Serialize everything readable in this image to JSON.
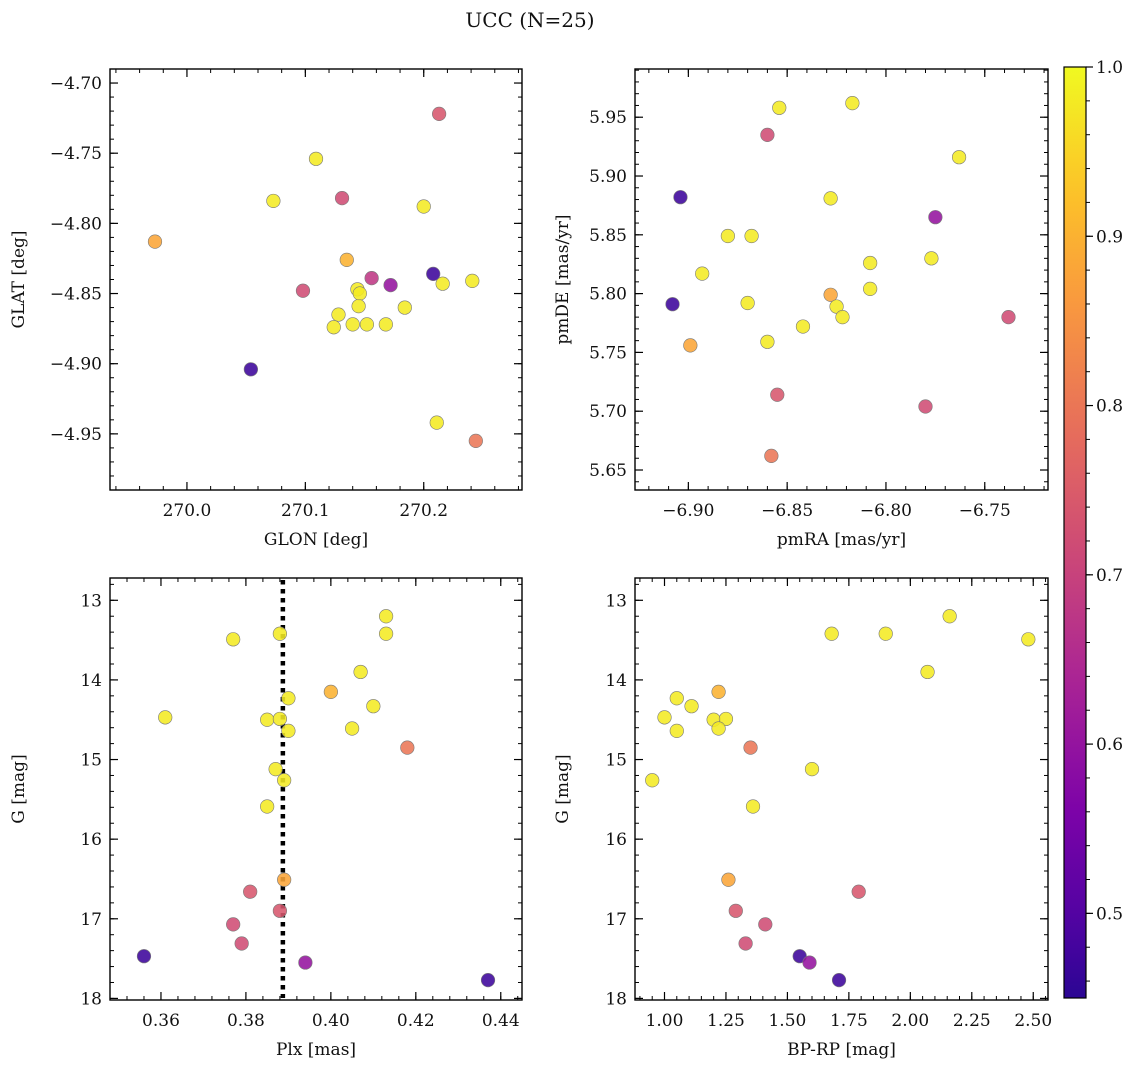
{
  "figure": {
    "title": "UCC (N=25)"
  },
  "colorbar": {
    "colormap": "plasma",
    "range": [
      0.45,
      1.0
    ],
    "ticks": [
      "0.5",
      "0.6",
      "0.7",
      "0.8",
      "0.9",
      "1.0"
    ]
  },
  "chart_data": [
    {
      "type": "scatter",
      "xlabel": "GLON [deg]",
      "ylabel": "GLAT [deg]",
      "xlim": [
        269.935,
        270.283
      ],
      "ylim": [
        -4.99,
        -4.69
      ],
      "xticks": [
        "270.0",
        "270.1",
        "270.2"
      ],
      "yticks": [
        "−4.70",
        "−4.75",
        "−4.80",
        "−4.85",
        "−4.90",
        "−4.95"
      ],
      "y_inverted": false,
      "points": [
        {
          "x": 270.213,
          "y": -4.722,
          "c": 0.74
        },
        {
          "x": 270.109,
          "y": -4.754,
          "c": 0.98
        },
        {
          "x": 270.073,
          "y": -4.784,
          "c": 0.98
        },
        {
          "x": 270.131,
          "y": -4.782,
          "c": 0.72
        },
        {
          "x": 270.2,
          "y": -4.788,
          "c": 0.98
        },
        {
          "x": 269.973,
          "y": -4.813,
          "c": 0.88
        },
        {
          "x": 270.135,
          "y": -4.826,
          "c": 0.9
        },
        {
          "x": 270.156,
          "y": -4.839,
          "c": 0.68
        },
        {
          "x": 270.172,
          "y": -4.844,
          "c": 0.6
        },
        {
          "x": 270.208,
          "y": -4.836,
          "c": 0.47
        },
        {
          "x": 270.216,
          "y": -4.843,
          "c": 0.98
        },
        {
          "x": 270.241,
          "y": -4.841,
          "c": 0.98
        },
        {
          "x": 270.098,
          "y": -4.848,
          "c": 0.72
        },
        {
          "x": 270.144,
          "y": -4.847,
          "c": 0.98
        },
        {
          "x": 270.146,
          "y": -4.85,
          "c": 0.98
        },
        {
          "x": 270.145,
          "y": -4.859,
          "c": 0.98
        },
        {
          "x": 270.184,
          "y": -4.86,
          "c": 0.98
        },
        {
          "x": 270.128,
          "y": -4.865,
          "c": 0.98
        },
        {
          "x": 270.14,
          "y": -4.872,
          "c": 0.98
        },
        {
          "x": 270.152,
          "y": -4.872,
          "c": 0.98
        },
        {
          "x": 270.168,
          "y": -4.872,
          "c": 0.98
        },
        {
          "x": 270.124,
          "y": -4.874,
          "c": 0.98
        },
        {
          "x": 270.054,
          "y": -4.904,
          "c": 0.47
        },
        {
          "x": 270.211,
          "y": -4.942,
          "c": 0.98
        },
        {
          "x": 270.244,
          "y": -4.955,
          "c": 0.8
        }
      ]
    },
    {
      "type": "scatter",
      "xlabel": "pmRA [mas/yr]",
      "ylabel": "pmDE [mas/yr]",
      "xlim": [
        -6.927,
        -6.718
      ],
      "ylim": [
        5.633,
        5.991
      ],
      "xticks": [
        "−6.90",
        "−6.85",
        "−6.80",
        "−6.75"
      ],
      "yticks": [
        "5.65",
        "5.70",
        "5.75",
        "5.80",
        "5.85",
        "5.90",
        "5.95"
      ],
      "y_inverted": false,
      "points": [
        {
          "x": -6.817,
          "y": 5.962,
          "c": 0.98
        },
        {
          "x": -6.854,
          "y": 5.958,
          "c": 0.98
        },
        {
          "x": -6.86,
          "y": 5.935,
          "c": 0.72
        },
        {
          "x": -6.763,
          "y": 5.916,
          "c": 0.98
        },
        {
          "x": -6.904,
          "y": 5.882,
          "c": 0.47
        },
        {
          "x": -6.828,
          "y": 5.881,
          "c": 0.98
        },
        {
          "x": -6.775,
          "y": 5.865,
          "c": 0.6
        },
        {
          "x": -6.88,
          "y": 5.849,
          "c": 0.98
        },
        {
          "x": -6.868,
          "y": 5.849,
          "c": 0.98
        },
        {
          "x": -6.777,
          "y": 5.83,
          "c": 0.98
        },
        {
          "x": -6.808,
          "y": 5.826,
          "c": 0.98
        },
        {
          "x": -6.893,
          "y": 5.817,
          "c": 0.98
        },
        {
          "x": -6.808,
          "y": 5.804,
          "c": 0.98
        },
        {
          "x": -6.828,
          "y": 5.799,
          "c": 0.88
        },
        {
          "x": -6.87,
          "y": 5.792,
          "c": 0.98
        },
        {
          "x": -6.908,
          "y": 5.791,
          "c": 0.47
        },
        {
          "x": -6.825,
          "y": 5.789,
          "c": 0.98
        },
        {
          "x": -6.822,
          "y": 5.78,
          "c": 0.98
        },
        {
          "x": -6.738,
          "y": 5.78,
          "c": 0.72
        },
        {
          "x": -6.842,
          "y": 5.772,
          "c": 0.98
        },
        {
          "x": -6.86,
          "y": 5.759,
          "c": 0.98
        },
        {
          "x": -6.899,
          "y": 5.756,
          "c": 0.88
        },
        {
          "x": -6.855,
          "y": 5.714,
          "c": 0.74
        },
        {
          "x": -6.78,
          "y": 5.704,
          "c": 0.72
        },
        {
          "x": -6.858,
          "y": 5.662,
          "c": 0.8
        }
      ]
    },
    {
      "type": "scatter",
      "xlabel": "Plx [mas]",
      "ylabel": "G [mag]",
      "xlim": [
        0.348,
        0.445
      ],
      "ylim": [
        18.02,
        12.72
      ],
      "xticks": [
        "0.36",
        "0.38",
        "0.40",
        "0.42",
        "0.44"
      ],
      "yticks": [
        "13",
        "14",
        "15",
        "16",
        "17",
        "18"
      ],
      "y_inverted": true,
      "vline": {
        "x": 0.3887,
        "style": "dotted"
      },
      "points": [
        {
          "x": 0.413,
          "y": 13.2,
          "c": 0.98
        },
        {
          "x": 0.377,
          "y": 13.49,
          "c": 0.98
        },
        {
          "x": 0.388,
          "y": 13.42,
          "c": 0.98
        },
        {
          "x": 0.413,
          "y": 13.42,
          "c": 0.98
        },
        {
          "x": 0.407,
          "y": 13.9,
          "c": 0.98
        },
        {
          "x": 0.4,
          "y": 14.15,
          "c": 0.9
        },
        {
          "x": 0.39,
          "y": 14.23,
          "c": 0.98
        },
        {
          "x": 0.41,
          "y": 14.33,
          "c": 0.98
        },
        {
          "x": 0.361,
          "y": 14.47,
          "c": 0.98
        },
        {
          "x": 0.385,
          "y": 14.5,
          "c": 0.98
        },
        {
          "x": 0.388,
          "y": 14.49,
          "c": 0.98
        },
        {
          "x": 0.405,
          "y": 14.61,
          "c": 0.98
        },
        {
          "x": 0.39,
          "y": 14.64,
          "c": 0.98
        },
        {
          "x": 0.418,
          "y": 14.85,
          "c": 0.8
        },
        {
          "x": 0.387,
          "y": 15.12,
          "c": 0.98
        },
        {
          "x": 0.389,
          "y": 15.26,
          "c": 0.98
        },
        {
          "x": 0.385,
          "y": 15.59,
          "c": 0.98
        },
        {
          "x": 0.389,
          "y": 16.51,
          "c": 0.88
        },
        {
          "x": 0.381,
          "y": 16.66,
          "c": 0.74
        },
        {
          "x": 0.388,
          "y": 16.9,
          "c": 0.74
        },
        {
          "x": 0.377,
          "y": 17.07,
          "c": 0.72
        },
        {
          "x": 0.379,
          "y": 17.31,
          "c": 0.72
        },
        {
          "x": 0.356,
          "y": 17.47,
          "c": 0.47
        },
        {
          "x": 0.394,
          "y": 17.55,
          "c": 0.6
        },
        {
          "x": 0.437,
          "y": 17.77,
          "c": 0.47
        }
      ]
    },
    {
      "type": "scatter",
      "xlabel": "BP-RP [mag]",
      "ylabel": "G [mag]",
      "xlim": [
        0.88,
        2.56
      ],
      "ylim": [
        18.02,
        12.72
      ],
      "xticks": [
        "1.00",
        "1.25",
        "1.50",
        "1.75",
        "2.00",
        "2.25",
        "2.50"
      ],
      "yticks": [
        "13",
        "14",
        "15",
        "16",
        "17",
        "18"
      ],
      "y_inverted": true,
      "points": [
        {
          "x": 2.16,
          "y": 13.2,
          "c": 0.98
        },
        {
          "x": 1.68,
          "y": 13.42,
          "c": 0.98
        },
        {
          "x": 1.9,
          "y": 13.42,
          "c": 0.98
        },
        {
          "x": 2.48,
          "y": 13.49,
          "c": 0.98
        },
        {
          "x": 2.07,
          "y": 13.9,
          "c": 0.98
        },
        {
          "x": 1.22,
          "y": 14.15,
          "c": 0.9
        },
        {
          "x": 1.05,
          "y": 14.23,
          "c": 0.98
        },
        {
          "x": 1.11,
          "y": 14.33,
          "c": 0.98
        },
        {
          "x": 1.0,
          "y": 14.47,
          "c": 0.98
        },
        {
          "x": 1.2,
          "y": 14.5,
          "c": 0.98
        },
        {
          "x": 1.25,
          "y": 14.49,
          "c": 0.98
        },
        {
          "x": 1.22,
          "y": 14.61,
          "c": 0.98
        },
        {
          "x": 1.05,
          "y": 14.64,
          "c": 0.98
        },
        {
          "x": 1.35,
          "y": 14.85,
          "c": 0.8
        },
        {
          "x": 1.6,
          "y": 15.12,
          "c": 0.98
        },
        {
          "x": 0.95,
          "y": 15.26,
          "c": 0.98
        },
        {
          "x": 1.36,
          "y": 15.59,
          "c": 0.98
        },
        {
          "x": 1.26,
          "y": 16.51,
          "c": 0.88
        },
        {
          "x": 1.79,
          "y": 16.66,
          "c": 0.74
        },
        {
          "x": 1.29,
          "y": 16.9,
          "c": 0.74
        },
        {
          "x": 1.41,
          "y": 17.07,
          "c": 0.72
        },
        {
          "x": 1.33,
          "y": 17.31,
          "c": 0.72
        },
        {
          "x": 1.55,
          "y": 17.47,
          "c": 0.47
        },
        {
          "x": 1.59,
          "y": 17.55,
          "c": 0.6
        },
        {
          "x": 1.71,
          "y": 17.77,
          "c": 0.47
        }
      ]
    }
  ]
}
